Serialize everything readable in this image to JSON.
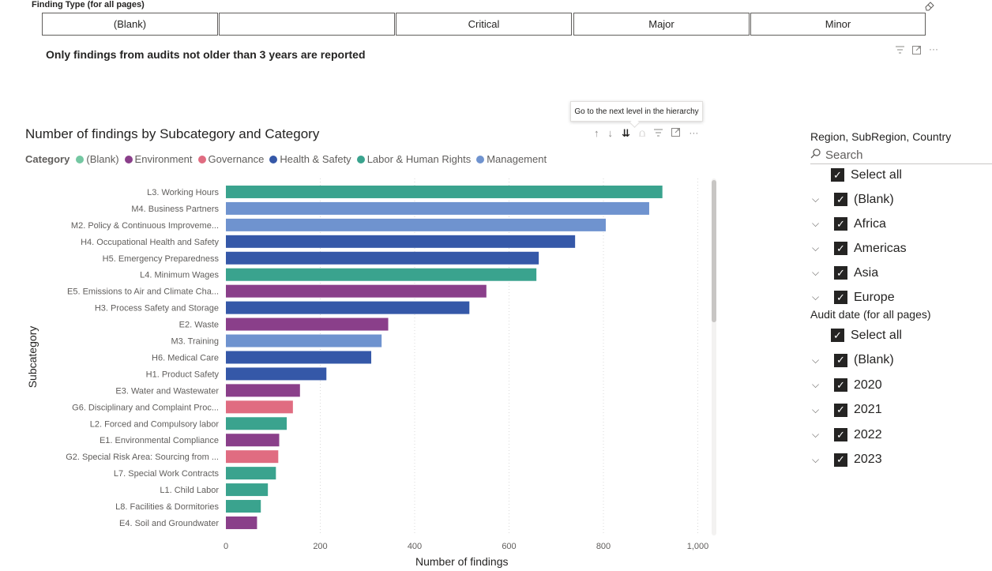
{
  "finding_type": {
    "title": "Finding Type (for all pages)",
    "options": [
      "(Blank)",
      "",
      "Critical",
      "Major",
      "Minor"
    ]
  },
  "notice": "Only findings from audits not older than 3 years are reported",
  "tooltip": "Go to the next level in the hierarchy",
  "chart_title": "Number of findings by Subcategory and Category",
  "legend": {
    "title": "Category",
    "items": [
      {
        "label": "(Blank)",
        "color": "#74C7A2"
      },
      {
        "label": "Environment",
        "color": "#8A3F8A"
      },
      {
        "label": "Governance",
        "color": "#E06C81"
      },
      {
        "label": "Health & Safety",
        "color": "#3558A8"
      },
      {
        "label": "Labor & Human Rights",
        "color": "#3AA38E"
      },
      {
        "label": "Management",
        "color": "#6F93CF"
      }
    ]
  },
  "chart_data": {
    "type": "bar",
    "orientation": "horizontal",
    "title": "Number of findings by Subcategory and Category",
    "xlabel": "Number of findings",
    "ylabel": "Subcategory",
    "xlim": [
      0,
      1050
    ],
    "xticks": [
      0,
      200,
      400,
      600,
      800,
      1000
    ],
    "xtick_labels": [
      "0",
      "200",
      "400",
      "600",
      "800",
      "1,000"
    ],
    "grid": "vertical dotted",
    "colors": {
      "Environment": "#8A3F8A",
      "Governance": "#E06C81",
      "Health & Safety": "#3558A8",
      "Labor & Human Rights": "#3AA38E",
      "Management": "#6F93CF"
    },
    "bars": [
      {
        "label": "L3. Working Hours",
        "category": "Labor & Human Rights",
        "value": 925
      },
      {
        "label": "M4. Business Partners",
        "category": "Management",
        "value": 897
      },
      {
        "label": "M2. Policy & Continuous Improveme...",
        "category": "Management",
        "value": 805
      },
      {
        "label": "H4. Occupational Health and Safety",
        "category": "Health & Safety",
        "value": 740
      },
      {
        "label": "H5. Emergency Preparedness",
        "category": "Health & Safety",
        "value": 663
      },
      {
        "label": "L4. Minimum Wages",
        "category": "Labor & Human Rights",
        "value": 658
      },
      {
        "label": "E5. Emissions to Air and Climate Cha...",
        "category": "Environment",
        "value": 552
      },
      {
        "label": "H3. Process Safety and Storage",
        "category": "Health & Safety",
        "value": 516
      },
      {
        "label": "E2. Waste",
        "category": "Environment",
        "value": 344
      },
      {
        "label": "M3. Training",
        "category": "Management",
        "value": 330
      },
      {
        "label": "H6. Medical Care",
        "category": "Health & Safety",
        "value": 308
      },
      {
        "label": "H1. Product Safety",
        "category": "Health & Safety",
        "value": 213
      },
      {
        "label": "E3. Water and Wastewater",
        "category": "Environment",
        "value": 157
      },
      {
        "label": "G6. Disciplinary and Complaint Proc...",
        "category": "Governance",
        "value": 142
      },
      {
        "label": "L2. Forced and Compulsory labor",
        "category": "Labor & Human Rights",
        "value": 129
      },
      {
        "label": "E1. Environmental Compliance",
        "category": "Environment",
        "value": 113
      },
      {
        "label": "G2. Special Risk Area: Sourcing from ...",
        "category": "Governance",
        "value": 111
      },
      {
        "label": "L7. Special Work Contracts",
        "category": "Labor & Human Rights",
        "value": 106
      },
      {
        "label": "L1. Child Labor",
        "category": "Labor & Human Rights",
        "value": 89
      },
      {
        "label": "L8. Facilities & Dormitories",
        "category": "Labor & Human Rights",
        "value": 74
      },
      {
        "label": "E4. Soil and Groundwater",
        "category": "Environment",
        "value": 66
      }
    ]
  },
  "region_slicer": {
    "title": "Region, SubRegion, Country",
    "search_placeholder": "Search",
    "select_all": "Select all",
    "items": [
      "(Blank)",
      "Africa",
      "Americas",
      "Asia",
      "Europe"
    ]
  },
  "date_slicer": {
    "title": "Audit date (for all pages)",
    "select_all": "Select all",
    "items": [
      "(Blank)",
      "2020",
      "2021",
      "2022",
      "2023"
    ]
  }
}
